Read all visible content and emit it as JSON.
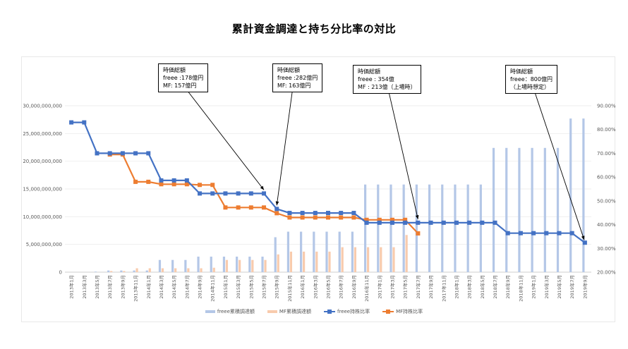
{
  "title": "累計資金調達と持ち分比率の対比",
  "colors": {
    "freee_bar": "#b4c7e7",
    "mf_bar": "#f8cbad",
    "freee_line": "#4472c4",
    "mf_line": "#ed7d31"
  },
  "callouts": [
    {
      "lines": [
        "時価総額",
        "freee :178億円",
        "MF: 157億円"
      ]
    },
    {
      "lines": [
        "時価総額",
        "freee :282億円",
        "MF: 163億円"
      ]
    },
    {
      "lines": [
        "時価総額",
        "freee : 354億",
        "MF : 213億（上場時）"
      ]
    },
    {
      "lines": [
        "時価総額",
        "freee：800億円",
        "（上場時想定）"
      ]
    }
  ],
  "chart_data": {
    "type": "bar+line",
    "title": "累計資金調達と持ち分比率の対比",
    "categories": [
      "2013年1月",
      "2013年3月",
      "2013年5月",
      "2013年7月",
      "2013年9月",
      "2013年11月",
      "2014年1月",
      "2014年3月",
      "2014年5月",
      "2014年7月",
      "2014年9月",
      "2014年11月",
      "2015年1月",
      "2015年3月",
      "2015年5月",
      "2015年7月",
      "2015年9月",
      "2015年11月",
      "2016年1月",
      "2016年3月",
      "2016年5月",
      "2016年7月",
      "2016年9月",
      "2016年11月",
      "2017年1月",
      "2017年3月",
      "2017年5月",
      "2017年7月",
      "2017年9月",
      "2017年11月",
      "2018年1月",
      "2018年3月",
      "2018年5月",
      "2018年7月",
      "2018年9月",
      "2018年11月",
      "2019年1月",
      "2019年3月",
      "2019年5月",
      "2019年7月",
      "2019年9月"
    ],
    "left_axis": {
      "ylim": [
        0,
        30000000000
      ],
      "ticks": [
        "0",
        "5,000,000,000",
        "10,000,000,000",
        "15,000,000,000",
        "20,000,000,000",
        "25,000,000,000",
        "30,000,000,000"
      ]
    },
    "right_axis": {
      "ylim": [
        20,
        90
      ],
      "ticks": [
        "20.00%",
        "30.00%",
        "40.00%",
        "50.00%",
        "60.00%",
        "70.00%",
        "80.00%",
        "90.00%"
      ]
    },
    "series": [
      {
        "name": "freee累積調達額",
        "kind": "bar",
        "axis": "left",
        "values": [
          0,
          0,
          100000000,
          300000000,
          300000000,
          300000000,
          300000000,
          2200000000,
          2200000000,
          2200000000,
          2800000000,
          2800000000,
          2800000000,
          2800000000,
          2800000000,
          2800000000,
          6300000000,
          7300000000,
          7300000000,
          7300000000,
          7300000000,
          7300000000,
          7300000000,
          15800000000,
          15800000000,
          15800000000,
          15800000000,
          15800000000,
          15800000000,
          15800000000,
          15800000000,
          15800000000,
          15800000000,
          22400000000,
          22400000000,
          22400000000,
          22400000000,
          22400000000,
          22400000000,
          27700000000,
          27700000000
        ]
      },
      {
        "name": "MF累積調達額",
        "kind": "bar",
        "axis": "left",
        "values": [
          0,
          0,
          0,
          200000000,
          200000000,
          700000000,
          700000000,
          700000000,
          700000000,
          700000000,
          700000000,
          800000000,
          2200000000,
          2200000000,
          2200000000,
          2200000000,
          3200000000,
          3700000000,
          3700000000,
          3700000000,
          3700000000,
          4500000000,
          4500000000,
          4500000000,
          4500000000,
          4500000000,
          6700000000,
          null,
          null,
          null,
          null,
          null,
          null,
          null,
          null,
          null,
          null,
          null,
          null,
          null,
          null
        ]
      },
      {
        "name": "freee持株比率",
        "kind": "line",
        "axis": "right",
        "values": [
          83,
          83,
          70,
          70,
          70,
          70,
          70,
          58.6,
          58.6,
          58.6,
          53.1,
          53.1,
          53.1,
          53.1,
          53.1,
          53.1,
          46.6,
          44.9,
          44.9,
          44.9,
          44.9,
          44.9,
          44.9,
          40.8,
          40.8,
          40.8,
          40.8,
          40.8,
          40.8,
          40.8,
          40.8,
          40.8,
          40.8,
          40.8,
          36.4,
          36.4,
          36.4,
          36.4,
          36.4,
          36.4,
          32.4
        ]
      },
      {
        "name": "MF持株比率",
        "kind": "line",
        "axis": "right",
        "values": [
          null,
          null,
          null,
          69.5,
          69.5,
          58,
          58,
          57,
          57,
          57,
          56.7,
          56.7,
          47.2,
          47.2,
          47.2,
          47.2,
          44.8,
          43,
          43,
          43,
          43,
          43,
          43,
          42,
          42,
          42,
          42,
          36.3,
          null,
          null,
          null,
          null,
          null,
          null,
          null,
          null,
          null,
          null,
          null,
          null,
          null
        ]
      }
    ]
  }
}
